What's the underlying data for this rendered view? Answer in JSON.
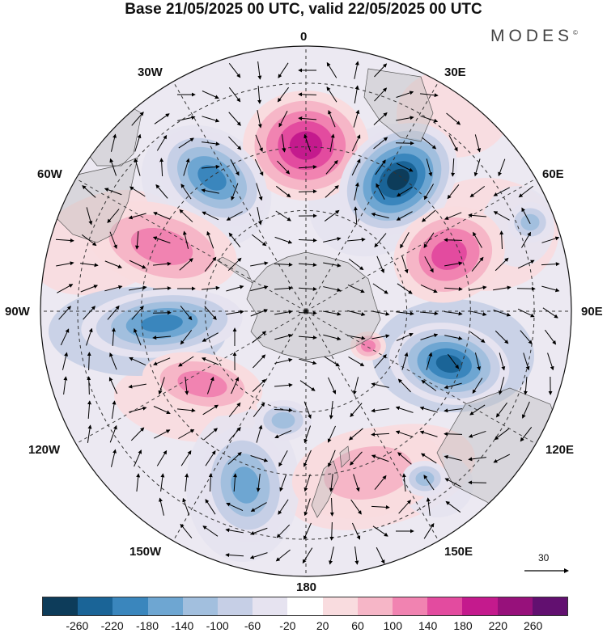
{
  "title": "Base 21/05/2025 00 UTC, valid 22/05/2025 00 UTC",
  "brand": "MODES",
  "brand_mark": "©",
  "longitude_labels": [
    "0",
    "30E",
    "60E",
    "90E",
    "120E",
    "150E",
    "180",
    "150W",
    "120W",
    "90W",
    "60W",
    "30W"
  ],
  "reference_vector_label": "30",
  "colorbar": {
    "colors": [
      "#0d3c5a",
      "#1a6497",
      "#3a86bd",
      "#6ea6d2",
      "#a2bfde",
      "#c6cfe6",
      "#e6e3f0",
      "#ffffff",
      "#f9dcdf",
      "#f6b6c7",
      "#f183b1",
      "#e34b9f",
      "#c41a8d",
      "#97117b",
      "#621070"
    ],
    "tick_labels": [
      "-260",
      "-220",
      "-180",
      "-140",
      "-100",
      "-60",
      "-20",
      "20",
      "60",
      "100",
      "140",
      "180",
      "220",
      "260"
    ]
  },
  "chart_data": {
    "type": "heatmap",
    "title": "Base 21/05/2025 00 UTC, valid 22/05/2025 00 UTC",
    "projection": "south polar stereographic",
    "field_bins": [
      "-260",
      "-220",
      "-180",
      "-140",
      "-100",
      "-60",
      "-20",
      "20",
      "60",
      "100",
      "140",
      "180",
      "220",
      "260"
    ],
    "anomaly_centers": [
      {
        "near": "0",
        "sign": "positive",
        "level": "220"
      },
      {
        "near": "30E",
        "sign": "negative",
        "level": "-260"
      },
      {
        "near": "30W",
        "sign": "negative",
        "level": "-180"
      },
      {
        "near": "60E",
        "sign": "positive",
        "level": "180"
      },
      {
        "near": "60W",
        "sign": "positive",
        "level": "140"
      },
      {
        "near": "90W",
        "sign": "negative",
        "level": "-180"
      },
      {
        "near": "90E",
        "sign": "negative",
        "level": "-220"
      },
      {
        "near": "120W",
        "sign": "positive",
        "level": "140"
      },
      {
        "near": "150W",
        "sign": "negative",
        "level": "-140"
      },
      {
        "near": "150E",
        "sign": "positive",
        "level": "60"
      }
    ],
    "wind_vectors": true,
    "reference_vector": "30"
  }
}
